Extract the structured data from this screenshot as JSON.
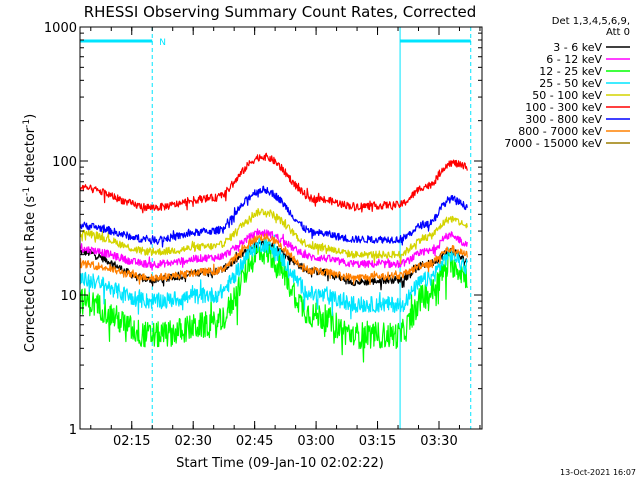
{
  "chart_data": {
    "type": "line",
    "title": "RHESSI Observing Summary Count Rates, Corrected",
    "xlabel": "Start Time (09-Jan-10 02:02:22)",
    "ylabel": "Corrected Count Rate (s⁻¹ detector⁻¹)",
    "yscale": "log",
    "ylim": [
      1,
      1000
    ],
    "y_tick_labels": [
      "1",
      "10",
      "100",
      "1000"
    ],
    "xlim": [
      "02:02:22",
      "03:40:30"
    ],
    "x_tick_labels": [
      "02:15",
      "02:30",
      "02:45",
      "03:00",
      "03:15",
      "03:30"
    ],
    "legend_header": [
      "Det 1,3,4,5,6,9,",
      "Att 0"
    ],
    "legend_position": "right",
    "footer_timestamp": "13-Oct-2021 16:07",
    "annotations": [
      {
        "text": "N",
        "at": "02:20"
      }
    ],
    "shading_intervals": [
      {
        "start": "02:02:22",
        "end": "02:20:00",
        "color": "#00e5ff",
        "kind": "night"
      },
      {
        "start": "03:20:30",
        "end": "03:37:45",
        "color": "#00e5ff",
        "kind": "night"
      }
    ],
    "vertical_markers": [
      {
        "at": "02:20:00",
        "style": "dashed"
      },
      {
        "at": "03:20:30",
        "style": "solid"
      },
      {
        "at": "03:37:45",
        "style": "dashed"
      }
    ],
    "series": [
      {
        "name": "3 - 6 keV",
        "color": "#000000",
        "x": [
          "02:02:22",
          "02:20",
          "02:35",
          "02:47",
          "03:00",
          "03:10",
          "03:20",
          "03:27",
          "03:33",
          "03:37"
        ],
        "y": [
          21,
          13,
          15,
          24,
          15,
          12.5,
          13,
          17,
          21,
          18
        ]
      },
      {
        "name": "6 - 12 keV",
        "color": "#ff00ff",
        "x": [
          "02:02:22",
          "02:20",
          "02:35",
          "02:47",
          "03:00",
          "03:10",
          "03:20",
          "03:27",
          "03:33",
          "03:37"
        ],
        "y": [
          22,
          17,
          19,
          29,
          19,
          17,
          17,
          21,
          28,
          24
        ]
      },
      {
        "name": "12 - 25 keV",
        "color": "#00ff00",
        "x": [
          "02:02:22",
          "02:20",
          "02:35",
          "02:47",
          "03:00",
          "03:10",
          "03:20",
          "03:27",
          "03:33",
          "03:37"
        ],
        "y": [
          9,
          5,
          6,
          21,
          7,
          5,
          5,
          10,
          17,
          14
        ]
      },
      {
        "name": "25 - 50 keV",
        "color": "#00e5ff",
        "x": [
          "02:02:22",
          "02:20",
          "02:35",
          "02:47",
          "03:00",
          "03:10",
          "03:20",
          "03:27",
          "03:33",
          "03:37"
        ],
        "y": [
          13,
          9,
          10,
          24,
          10,
          8.5,
          8.5,
          13,
          20,
          16
        ]
      },
      {
        "name": "50 - 100 keV",
        "color": "#d4d400",
        "x": [
          "02:02:22",
          "02:20",
          "02:35",
          "02:47",
          "03:00",
          "03:10",
          "03:20",
          "03:27",
          "03:33",
          "03:37"
        ],
        "y": [
          29,
          21,
          23,
          42,
          23,
          20,
          20,
          27,
          37,
          33
        ]
      },
      {
        "name": "100 - 300 keV",
        "color": "#ff0000",
        "x": [
          "02:02:22",
          "02:20",
          "02:35",
          "02:47",
          "03:00",
          "03:10",
          "03:20",
          "03:27",
          "03:33",
          "03:37"
        ],
        "y": [
          63,
          45,
          53,
          108,
          52,
          46,
          47,
          65,
          97,
          90
        ]
      },
      {
        "name": "300 - 800 keV",
        "color": "#0000ff",
        "x": [
          "02:02:22",
          "02:20",
          "02:35",
          "02:47",
          "03:00",
          "03:10",
          "03:20",
          "03:27",
          "03:33",
          "03:37"
        ],
        "y": [
          33,
          26,
          30,
          61,
          29,
          26,
          26,
          34,
          52,
          46
        ]
      },
      {
        "name": "800 - 7000 keV",
        "color": "#ff8000",
        "x": [
          "02:02:22",
          "02:20",
          "02:35",
          "02:47",
          "03:00",
          "03:10",
          "03:20",
          "03:27",
          "03:33",
          "03:37"
        ],
        "y": [
          17,
          13.5,
          15,
          27,
          15,
          13.5,
          14,
          17,
          22,
          20
        ]
      },
      {
        "name": "7000 - 15000 keV",
        "color": "#9b7d00",
        "x": [],
        "y": []
      }
    ]
  }
}
